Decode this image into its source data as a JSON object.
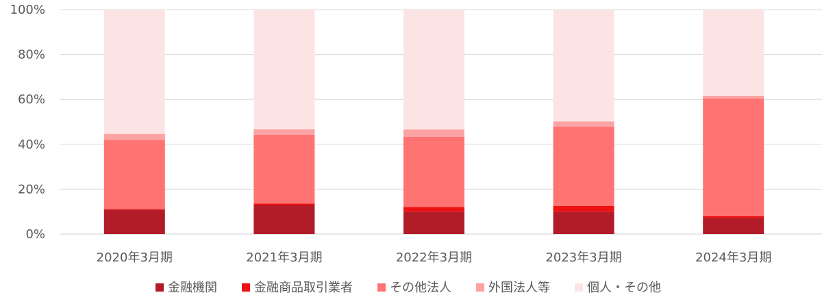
{
  "chart_data": {
    "type": "bar",
    "stacked": true,
    "percent": true,
    "categories": [
      "2020年3月期",
      "2021年3月期",
      "2022年3月期",
      "2023年3月期",
      "2024年3月期"
    ],
    "series": [
      {
        "name": "金融機関",
        "color": "#b11c28",
        "values": [
          10.8,
          12.8,
          10.0,
          10.0,
          7.2
        ]
      },
      {
        "name": "金融商品取引業者",
        "color": "#ee1111",
        "values": [
          0.3,
          0.8,
          2.1,
          2.5,
          0.8
        ]
      },
      {
        "name": "その他法人",
        "color": "#ff7373",
        "values": [
          30.8,
          30.6,
          31.2,
          35.4,
          52.4
        ]
      },
      {
        "name": "外国法人等",
        "color": "#fba3a3",
        "values": [
          2.7,
          2.5,
          3.3,
          2.3,
          1.2
        ]
      },
      {
        "name": "個人・その他",
        "color": "#fde4e4",
        "values": [
          55.4,
          53.3,
          53.4,
          49.8,
          38.4
        ]
      }
    ],
    "yticks": [
      "0%",
      "20%",
      "40%",
      "60%",
      "80%",
      "100%"
    ],
    "ylim": [
      0,
      100
    ],
    "grid": true,
    "legend_position": "bottom",
    "title": "",
    "xlabel": "",
    "ylabel": ""
  }
}
